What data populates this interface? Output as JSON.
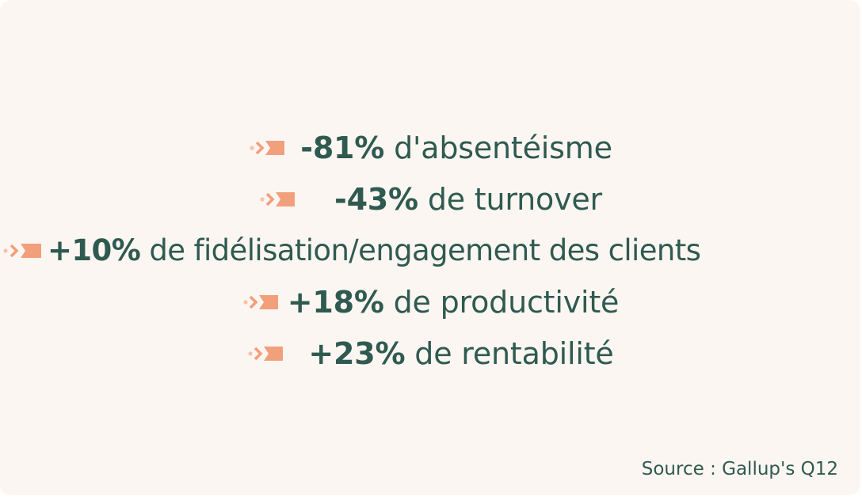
{
  "stats": [
    {
      "value": "-81%",
      "label": "d'absentéisme"
    },
    {
      "value": "-43%",
      "label": "de turnover"
    },
    {
      "value": "+10%",
      "label": "de fidélisation/engagement des clients"
    },
    {
      "value": "+18%",
      "label": "de productivité"
    },
    {
      "value": "+23%",
      "label": "de rentabilité"
    }
  ],
  "source": "Source : Gallup's Q12",
  "colors": {
    "background": "#fcf6f3",
    "text": "#2f5a50",
    "accent": "#f2a07b",
    "accent_light": "#f7c2a8"
  },
  "icons": {
    "bullet": "chevron-arrow-icon"
  }
}
